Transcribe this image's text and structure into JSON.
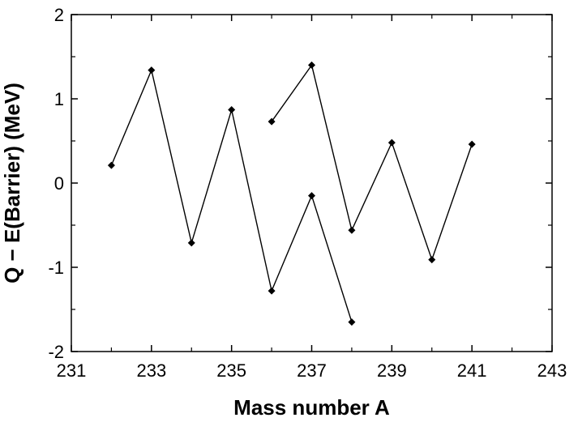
{
  "chart_data": {
    "type": "line",
    "title": "",
    "xlabel": "Mass number A",
    "ylabel": "Q − E(Barrier) (MeV)",
    "xlim": [
      231,
      243
    ],
    "ylim": [
      -2,
      2
    ],
    "x_ticks": [
      231,
      233,
      235,
      237,
      239,
      241,
      243
    ],
    "x_tick_labels": [
      "231",
      "233",
      "235",
      "237",
      "239",
      "241",
      "243"
    ],
    "x_minor_ticks": [
      232,
      234,
      236,
      238,
      240,
      242
    ],
    "y_ticks": [
      -2,
      -1,
      0,
      1,
      2
    ],
    "y_tick_labels": [
      "-2",
      "-1",
      "0",
      "1",
      "2"
    ],
    "y_minor_ticks": [
      -1.5,
      -0.5,
      0.5,
      1.5
    ],
    "grid": false,
    "legend": "none",
    "marker": "diamond",
    "line_color": "#000000",
    "series": [
      {
        "x": [
          232,
          233,
          234,
          235,
          236,
          237,
          238
        ],
        "y": [
          0.21,
          1.34,
          -0.71,
          0.87,
          -1.28,
          -0.15,
          -1.65
        ]
      },
      {
        "x": [
          236,
          237,
          238,
          239,
          240,
          241
        ],
        "y": [
          0.73,
          1.4,
          -0.56,
          0.48,
          -0.91,
          0.46
        ]
      }
    ]
  }
}
